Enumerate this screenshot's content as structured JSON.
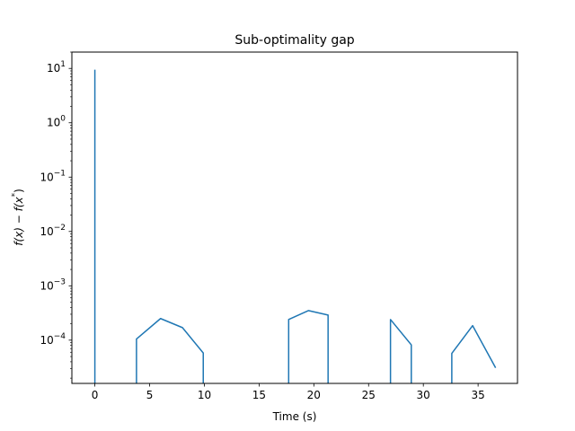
{
  "chart_data": {
    "type": "line",
    "title": "Sub-optimality gap",
    "xlabel": "Time (s)",
    "ylabel": {
      "base": "f(x) − f(x",
      "superscript": "*",
      "close": ")"
    },
    "xlim": [
      -2.1,
      38.6
    ],
    "ylim": [
      1.6e-05,
      20
    ],
    "yscale": "log",
    "grid": false,
    "x_ticks": [
      0,
      5,
      10,
      15,
      20,
      25,
      30,
      35
    ],
    "y_ticks": [
      {
        "value": 10,
        "base": "10",
        "exp": "1"
      },
      {
        "value": 1,
        "base": "10",
        "exp": "0"
      },
      {
        "value": 0.1,
        "base": "10",
        "exp": "−1"
      },
      {
        "value": 0.01,
        "base": "10",
        "exp": "−2"
      },
      {
        "value": 0.001,
        "base": "10",
        "exp": "−3"
      },
      {
        "value": 0.0001,
        "base": "10",
        "exp": "−4"
      }
    ],
    "series": [
      {
        "color": "#1f77b4",
        "segments": [
          [
            [
              0.0,
              1.6e-05
            ],
            [
              0.0,
              9.5
            ]
          ],
          [
            [
              3.8,
              1.6e-05
            ],
            [
              3.8,
              0.000105
            ],
            [
              6.0,
              0.00025
            ],
            [
              8.0,
              0.00017
            ],
            [
              9.9,
              5.8e-05
            ],
            [
              9.9,
              1.6e-05
            ]
          ],
          [
            [
              17.7,
              1.6e-05
            ],
            [
              17.7,
              0.00024
            ],
            [
              19.5,
              0.00035
            ],
            [
              21.3,
              0.00029
            ],
            [
              21.3,
              1.6e-05
            ]
          ],
          [
            [
              27.0,
              1.6e-05
            ],
            [
              27.0,
              0.00024
            ],
            [
              28.9,
              8.2e-05
            ],
            [
              28.9,
              1.6e-05
            ]
          ],
          [
            [
              32.6,
              1.6e-05
            ],
            [
              32.6,
              5.7e-05
            ],
            [
              34.5,
              0.000185
            ],
            [
              36.6,
              3.1e-05
            ]
          ]
        ]
      }
    ]
  }
}
